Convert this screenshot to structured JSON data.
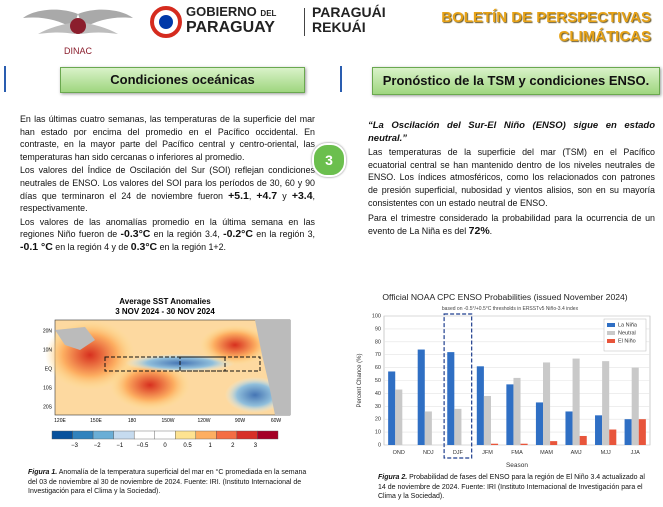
{
  "header": {
    "logo_text": "DINAC",
    "gov_line1": "GOBIERNO",
    "gov_del": "DEL",
    "gov_line2": "PARAGUAY",
    "rek_line1": "PARAGUÁI",
    "rek_line2": "REKUÁI",
    "title_line1": "BOLETÍN DE PERSPECTIVAS",
    "title_line2": "CLIMÁTICAS"
  },
  "page_number": "3",
  "left": {
    "heading": "Condiciones oceánicas",
    "paragraphs": [
      {
        "runs": [
          {
            "t": "En las últimas cuatro semanas, las temperaturas de la superficie del mar han estado por encima del promedio en el Pacífico occidental. En contraste, en la mayor parte del Pacífico central y centro-oriental, las temperaturas han sido cercanas o inferiores al promedio."
          }
        ]
      },
      {
        "runs": [
          {
            "t": "Los valores del Índice de Oscilación del Sur (SOI) reflejan condiciones neutrales de ENSO. Los valores del SOI para los períodos de 30, 60 y 90 días que terminaron el 24 de noviembre fueron "
          },
          {
            "t": "+5.1",
            "b": true
          },
          {
            "t": ", "
          },
          {
            "t": "+4.7",
            "b": true
          },
          {
            "t": " y "
          },
          {
            "t": "+3.4",
            "b": true
          },
          {
            "t": ", respectivamente."
          }
        ]
      },
      {
        "runs": [
          {
            "t": " Los valores de las anomalías promedio en la última semana en las regiones Niño fueron de "
          },
          {
            "t": "-0.3°C",
            "b": true
          },
          {
            "t": " en la región 3.4, "
          },
          {
            "t": "-0.2°C",
            "b": true
          },
          {
            "t": " en la región 3, "
          },
          {
            "t": "-0.1 °C",
            "b": true
          },
          {
            "t": " en la región 4 y de "
          },
          {
            "t": "0.3°C",
            "b": true
          },
          {
            "t": " en la región 1+2."
          }
        ]
      }
    ],
    "map": {
      "title": "Average SST Anomalies",
      "period": "3 NOV 2024 - 30 NOV 2024",
      "lat_labels": [
        "20N",
        "10N",
        "EQ",
        "10S",
        "20S"
      ],
      "lon_labels": [
        "120E",
        "150E",
        "180",
        "150W",
        "120W",
        "90W",
        "60W"
      ],
      "colorbar_labels": [
        "−3",
        "−2",
        "−1",
        "−0.5",
        "0",
        "0.5",
        "1",
        "2",
        "3"
      ]
    },
    "caption": {
      "label": "Figura 1.",
      "text": " Anomalía de la temperatura superficial del mar en °C promediada en la semana del 03 de noviembre al 30 de noviembre de 2024. Fuente: IRI. (Instituto Internacional de Investigación para el Clima y la Sociedad)."
    }
  },
  "right": {
    "heading": "Pronóstico de la TSM y condiciones ENSO.",
    "quote": "“La Oscilación del Sur-El Niño (ENSO) sigue en estado neutral.”",
    "paragraphs": [
      {
        "runs": [
          {
            "t": "Las temperaturas de la superficie del mar (TSM) en el Pacífico ecuatorial central se han mantenido dentro de los niveles neutrales de ENSO. Los índices atmosféricos, como los relacionados con patrones de presión superficial, nubosidad y vientos alisios, son en su mayoría consistentes con un estado neutral de ENSO."
          }
        ]
      },
      {
        "runs": [
          {
            "t": "Para el trimestre considerado la probabilidad para la ocurrencia de un evento de La Niña es del "
          },
          {
            "t": "72%",
            "b": true
          },
          {
            "t": "."
          }
        ]
      }
    ],
    "caption": {
      "label": "Figura 2.",
      "text": " Probabilidad de fases del ENSO para la región de El Niño 3.4 actualizado al 14 de noviembre de 2024. Fuente: IRI (Instituto Internacional de Investigación para el Clima y la Sociedad)."
    }
  },
  "chart_data": {
    "type": "bar",
    "title": "Official NOAA CPC ENSO Probabilities (issued November 2024)",
    "subtitle": "based on -0.5°/+0.5°C thresholds in ERSSTv5 Niño-3.4 index",
    "x_label": "Season",
    "y_label": "Percent Chance (%)",
    "categories": [
      "OND",
      "NDJ",
      "DJF",
      "JFM",
      "FMA",
      "MAM",
      "AMJ",
      "MJJ",
      "JJA"
    ],
    "series": [
      {
        "name": "La Niña",
        "color": "#2f6fc4",
        "values": [
          57,
          74,
          72,
          61,
          47,
          33,
          26,
          23,
          20
        ]
      },
      {
        "name": "Neutral",
        "color": "#c9c9c9",
        "values": [
          43,
          26,
          28,
          38,
          52,
          64,
          67,
          65,
          60
        ]
      },
      {
        "name": "El Niño",
        "color": "#e8553b",
        "values": [
          0,
          0,
          0,
          1,
          1,
          3,
          7,
          12,
          20
        ]
      }
    ],
    "ylim": [
      0,
      100
    ],
    "yticks": [
      0,
      10,
      20,
      30,
      40,
      50,
      60,
      70,
      80,
      90,
      100
    ],
    "grid": true,
    "legend": "top-right"
  }
}
